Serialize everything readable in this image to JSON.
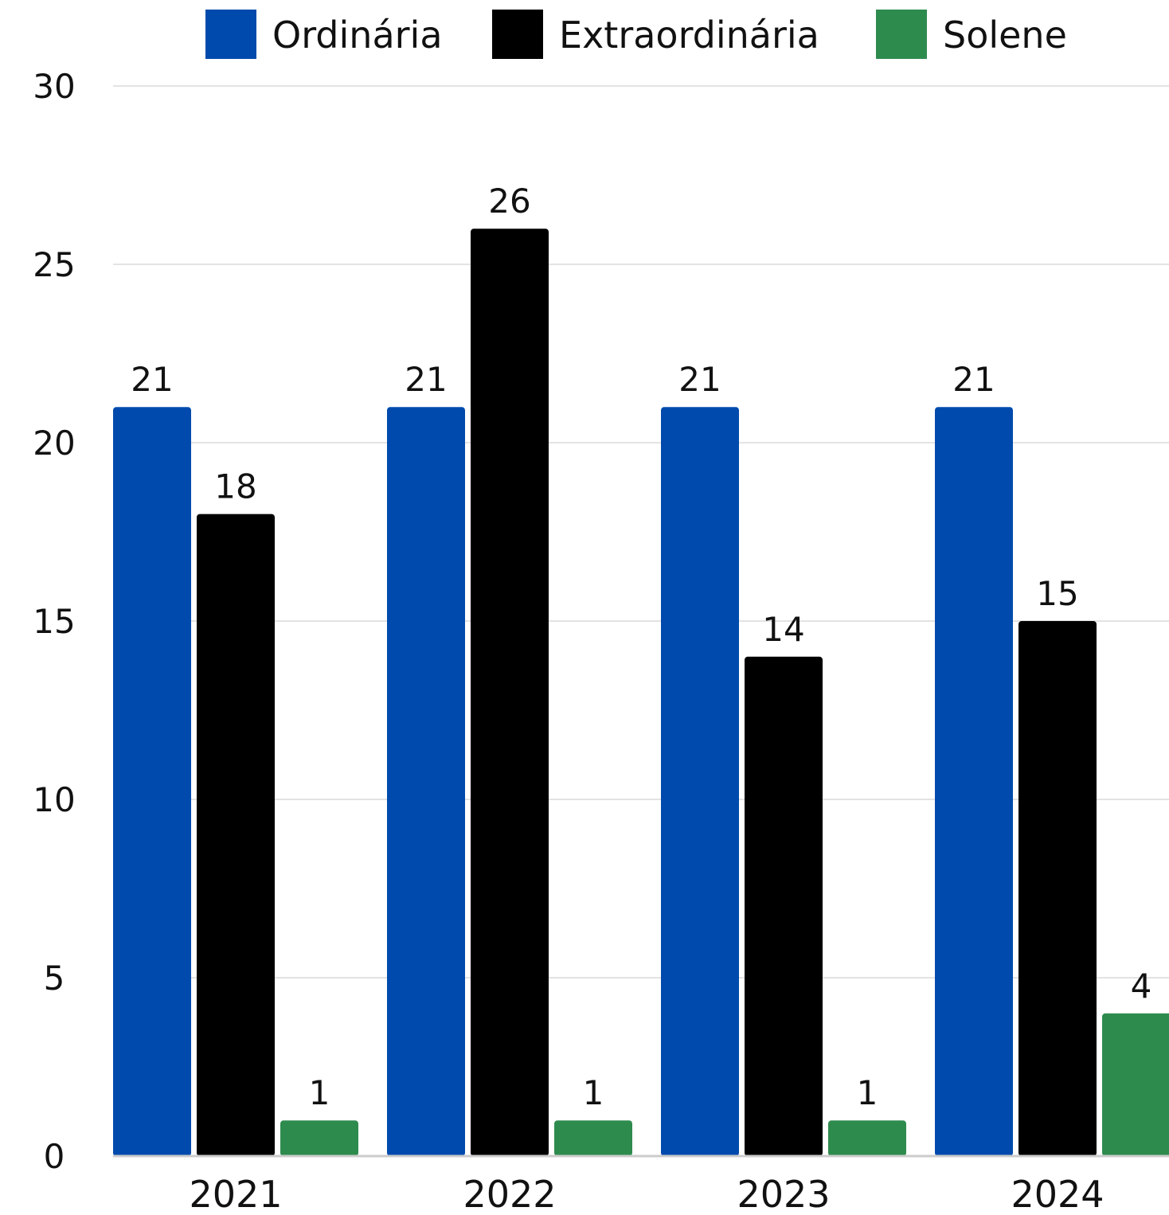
{
  "chart_data": {
    "type": "bar",
    "title": "",
    "xlabel": "",
    "ylabel": "",
    "categories": [
      "2021",
      "2022",
      "2023",
      "2024"
    ],
    "series": [
      {
        "name": "Ordinária",
        "color": "#004aad",
        "values": [
          21,
          21,
          21,
          21
        ]
      },
      {
        "name": "Extraordinária",
        "color": "#000000",
        "values": [
          18,
          26,
          14,
          15
        ]
      },
      {
        "name": "Solene",
        "color": "#2e8b4e",
        "values": [
          1,
          1,
          1,
          4
        ]
      }
    ],
    "ylim": [
      0,
      30
    ],
    "yticks": [
      "0",
      "5",
      "10",
      "15",
      "20",
      "25",
      "30"
    ],
    "grid": true,
    "legend_position": "top"
  }
}
